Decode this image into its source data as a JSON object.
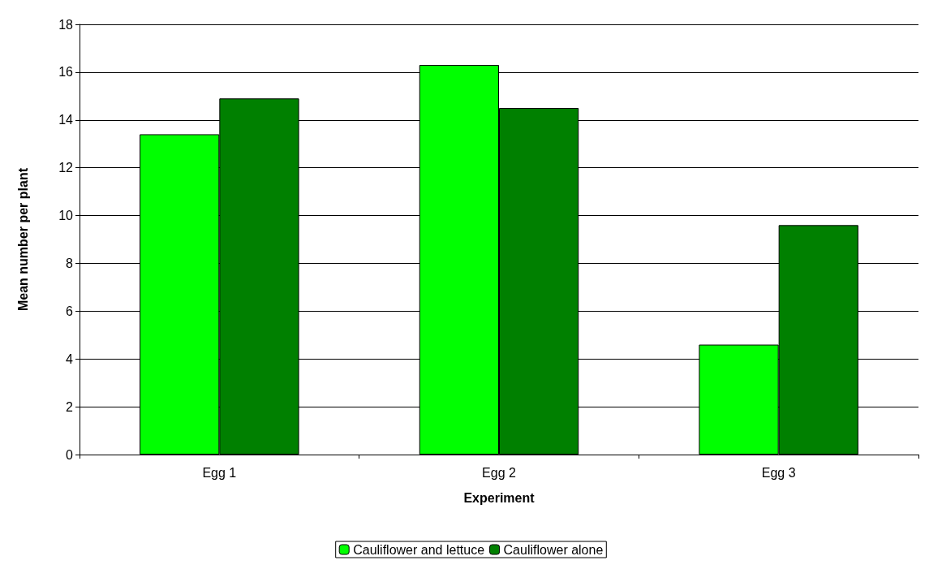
{
  "chart_data": {
    "type": "bar",
    "xlabel": "Experiment",
    "ylabel": "Mean number per plant",
    "categories": [
      "Egg 1",
      "Egg 2",
      "Egg 3"
    ],
    "series": [
      {
        "name": "Cauliflower and lettuce",
        "color": "#00ff00",
        "values": [
          13.4,
          16.3,
          4.6
        ]
      },
      {
        "name": "Cauliflower alone",
        "color": "#008000",
        "values": [
          14.9,
          14.5,
          9.6
        ]
      }
    ],
    "ylim": [
      0,
      18
    ],
    "yticks": [
      0,
      2,
      4,
      6,
      8,
      10,
      12,
      14,
      16,
      18
    ],
    "grid": "y",
    "legend": "bottom"
  }
}
